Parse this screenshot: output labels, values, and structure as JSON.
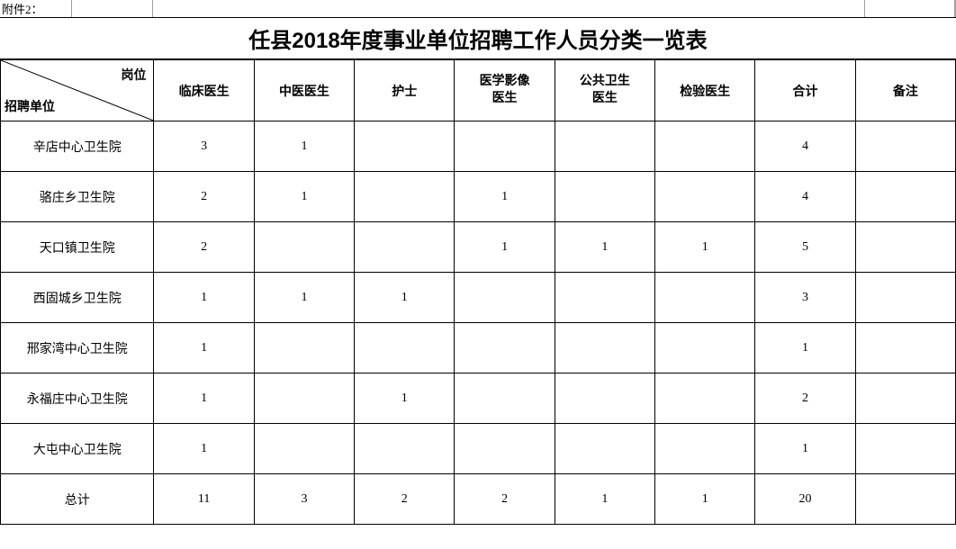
{
  "attach_label": "附件2：",
  "title": "任县2018年度事业单位招聘工作人员分类一览表",
  "header": {
    "diag_top": "岗位",
    "diag_bottom": "招聘单位",
    "cols": [
      "临床医生",
      "中医医生",
      "护士",
      "医学影像\n医生",
      "公共卫生\n医生",
      "检验医生",
      "合计",
      "备注"
    ]
  },
  "rows": [
    {
      "unit": "辛店中心卫生院",
      "cells": [
        "3",
        "1",
        "",
        "",
        "",
        "",
        "4",
        ""
      ]
    },
    {
      "unit": "骆庄乡卫生院",
      "cells": [
        "2",
        "1",
        "",
        "1",
        "",
        "",
        "4",
        ""
      ]
    },
    {
      "unit": "天口镇卫生院",
      "cells": [
        "2",
        "",
        "",
        "1",
        "1",
        "1",
        "5",
        ""
      ]
    },
    {
      "unit": "西固城乡卫生院",
      "cells": [
        "1",
        "1",
        "1",
        "",
        "",
        "",
        "3",
        ""
      ]
    },
    {
      "unit": "邢家湾中心卫生院",
      "cells": [
        "1",
        "",
        "",
        "",
        "",
        "",
        "1",
        ""
      ]
    },
    {
      "unit": "永福庄中心卫生院",
      "cells": [
        "1",
        "",
        "1",
        "",
        "",
        "",
        "2",
        ""
      ]
    },
    {
      "unit": "大屯中心卫生院",
      "cells": [
        "1",
        "",
        "",
        "",
        "",
        "",
        "1",
        ""
      ]
    },
    {
      "unit": "总计",
      "cells": [
        "11",
        "3",
        "2",
        "2",
        "1",
        "1",
        "20",
        ""
      ]
    }
  ]
}
